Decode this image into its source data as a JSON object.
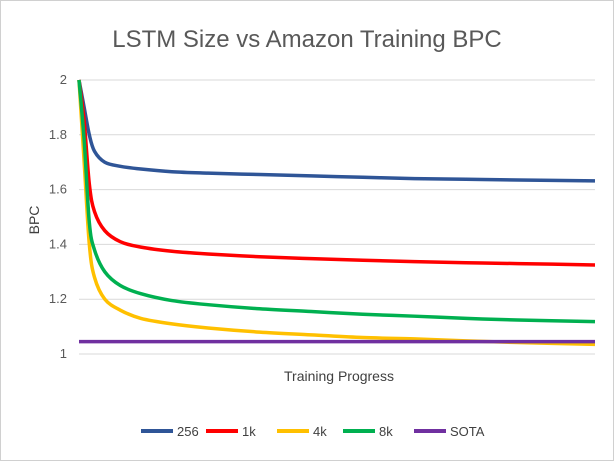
{
  "chart_data": {
    "type": "line",
    "title": "LSTM Size vs Amazon Training BPC",
    "xlabel": "Training Progress",
    "ylabel": "BPC",
    "ylim": [
      1,
      2
    ],
    "yticks": [
      "1",
      "1.2",
      "1.4",
      "1.6",
      "1.8",
      "2"
    ],
    "xrange": [
      0,
      100
    ],
    "grid": true,
    "legend_position": "bottom",
    "x": [
      0,
      1,
      2,
      3,
      5,
      8,
      12,
      18,
      25,
      35,
      45,
      55,
      65,
      75,
      85,
      100
    ],
    "series": [
      {
        "name": "256",
        "color": "#2F5597",
        "values": [
          2.0,
          1.9,
          1.8,
          1.74,
          1.7,
          1.685,
          1.675,
          1.665,
          1.66,
          1.655,
          1.65,
          1.645,
          1.64,
          1.638,
          1.635,
          1.632
        ]
      },
      {
        "name": "1k",
        "color": "#FF0000",
        "values": [
          2.0,
          1.85,
          1.62,
          1.52,
          1.45,
          1.41,
          1.39,
          1.375,
          1.365,
          1.355,
          1.348,
          1.342,
          1.337,
          1.333,
          1.33,
          1.325
        ]
      },
      {
        "name": "4k",
        "color": "#FFC000",
        "values": [
          2.0,
          1.7,
          1.4,
          1.28,
          1.2,
          1.16,
          1.13,
          1.11,
          1.095,
          1.08,
          1.07,
          1.06,
          1.055,
          1.048,
          1.042,
          1.035
        ]
      },
      {
        "name": "8k",
        "color": "#00B050",
        "values": [
          2.0,
          1.78,
          1.48,
          1.38,
          1.3,
          1.25,
          1.22,
          1.195,
          1.18,
          1.165,
          1.155,
          1.145,
          1.138,
          1.13,
          1.124,
          1.118
        ]
      },
      {
        "name": "SOTA",
        "color": "#7030A0",
        "values": [
          1.045,
          1.045,
          1.045,
          1.045,
          1.045,
          1.045,
          1.045,
          1.045,
          1.045,
          1.045,
          1.045,
          1.045,
          1.045,
          1.045,
          1.045,
          1.045
        ]
      }
    ]
  }
}
